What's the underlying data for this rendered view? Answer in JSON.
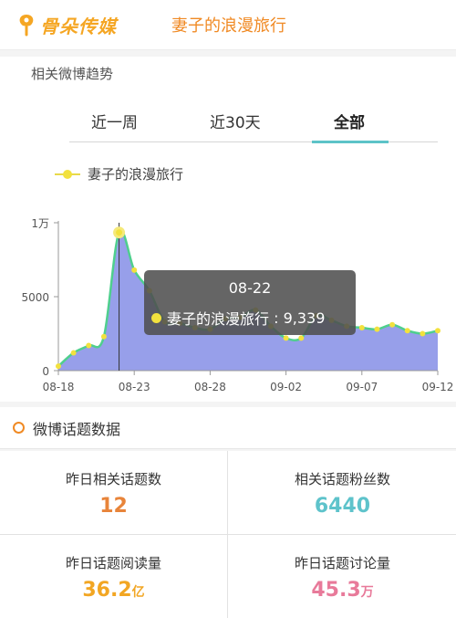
{
  "header": {
    "logo_text": "骨朵传媒",
    "title": "妻子的浪漫旅行"
  },
  "trend": {
    "section_label": "相关微博趋势",
    "tabs": [
      {
        "label": "近一周",
        "active": false
      },
      {
        "label": "近30天",
        "active": false
      },
      {
        "label": "全部",
        "active": true
      }
    ]
  },
  "chart_data": {
    "type": "area",
    "legend": [
      "妻子的浪漫旅行"
    ],
    "series": [
      {
        "name": "妻子的浪漫旅行",
        "x": [
          "08-18",
          "08-19",
          "08-20",
          "08-21",
          "08-22",
          "08-23",
          "08-24",
          "08-25",
          "08-26",
          "08-27",
          "08-28",
          "08-29",
          "08-30",
          "08-31",
          "09-01",
          "09-02",
          "09-03",
          "09-04",
          "09-05",
          "09-06",
          "09-07",
          "09-08",
          "09-09",
          "09-10",
          "09-11",
          "09-12"
        ],
        "values": [
          300,
          1200,
          1700,
          2300,
          9339,
          6800,
          5400,
          3300,
          3200,
          2900,
          2800,
          3500,
          3600,
          4100,
          3000,
          2200,
          2200,
          3700,
          3400,
          3000,
          2900,
          2800,
          3100,
          2700,
          2500,
          2700
        ]
      }
    ],
    "x_tick_labels": [
      "08-18",
      "08-23",
      "08-28",
      "09-02",
      "09-07",
      "09-12"
    ],
    "y_tick_labels": [
      "0",
      "5000",
      "1万"
    ],
    "ylim": [
      0,
      10000
    ],
    "fill_color": "#8c95e8",
    "line_color": "#4fcf8e",
    "point_color": "#f2e13e",
    "grid": false,
    "legend_position": "top-left",
    "tooltip": {
      "date": "08-22",
      "series_name": "妻子的浪漫旅行",
      "value_text": "9,339"
    }
  },
  "topics": {
    "title": "微博话题数据",
    "stats": [
      {
        "label": "昨日相关话题数",
        "value": "12",
        "unit": "",
        "color": "#e8843a"
      },
      {
        "label": "相关话题粉丝数",
        "value": "6440",
        "unit": "",
        "color": "#5ec3cb"
      },
      {
        "label": "昨日话题阅读量",
        "value": "36.2",
        "unit": "亿",
        "color": "#f2a623"
      },
      {
        "label": "昨日话题讨论量",
        "value": "45.3",
        "unit": "万",
        "color": "#e87a9a"
      }
    ]
  }
}
